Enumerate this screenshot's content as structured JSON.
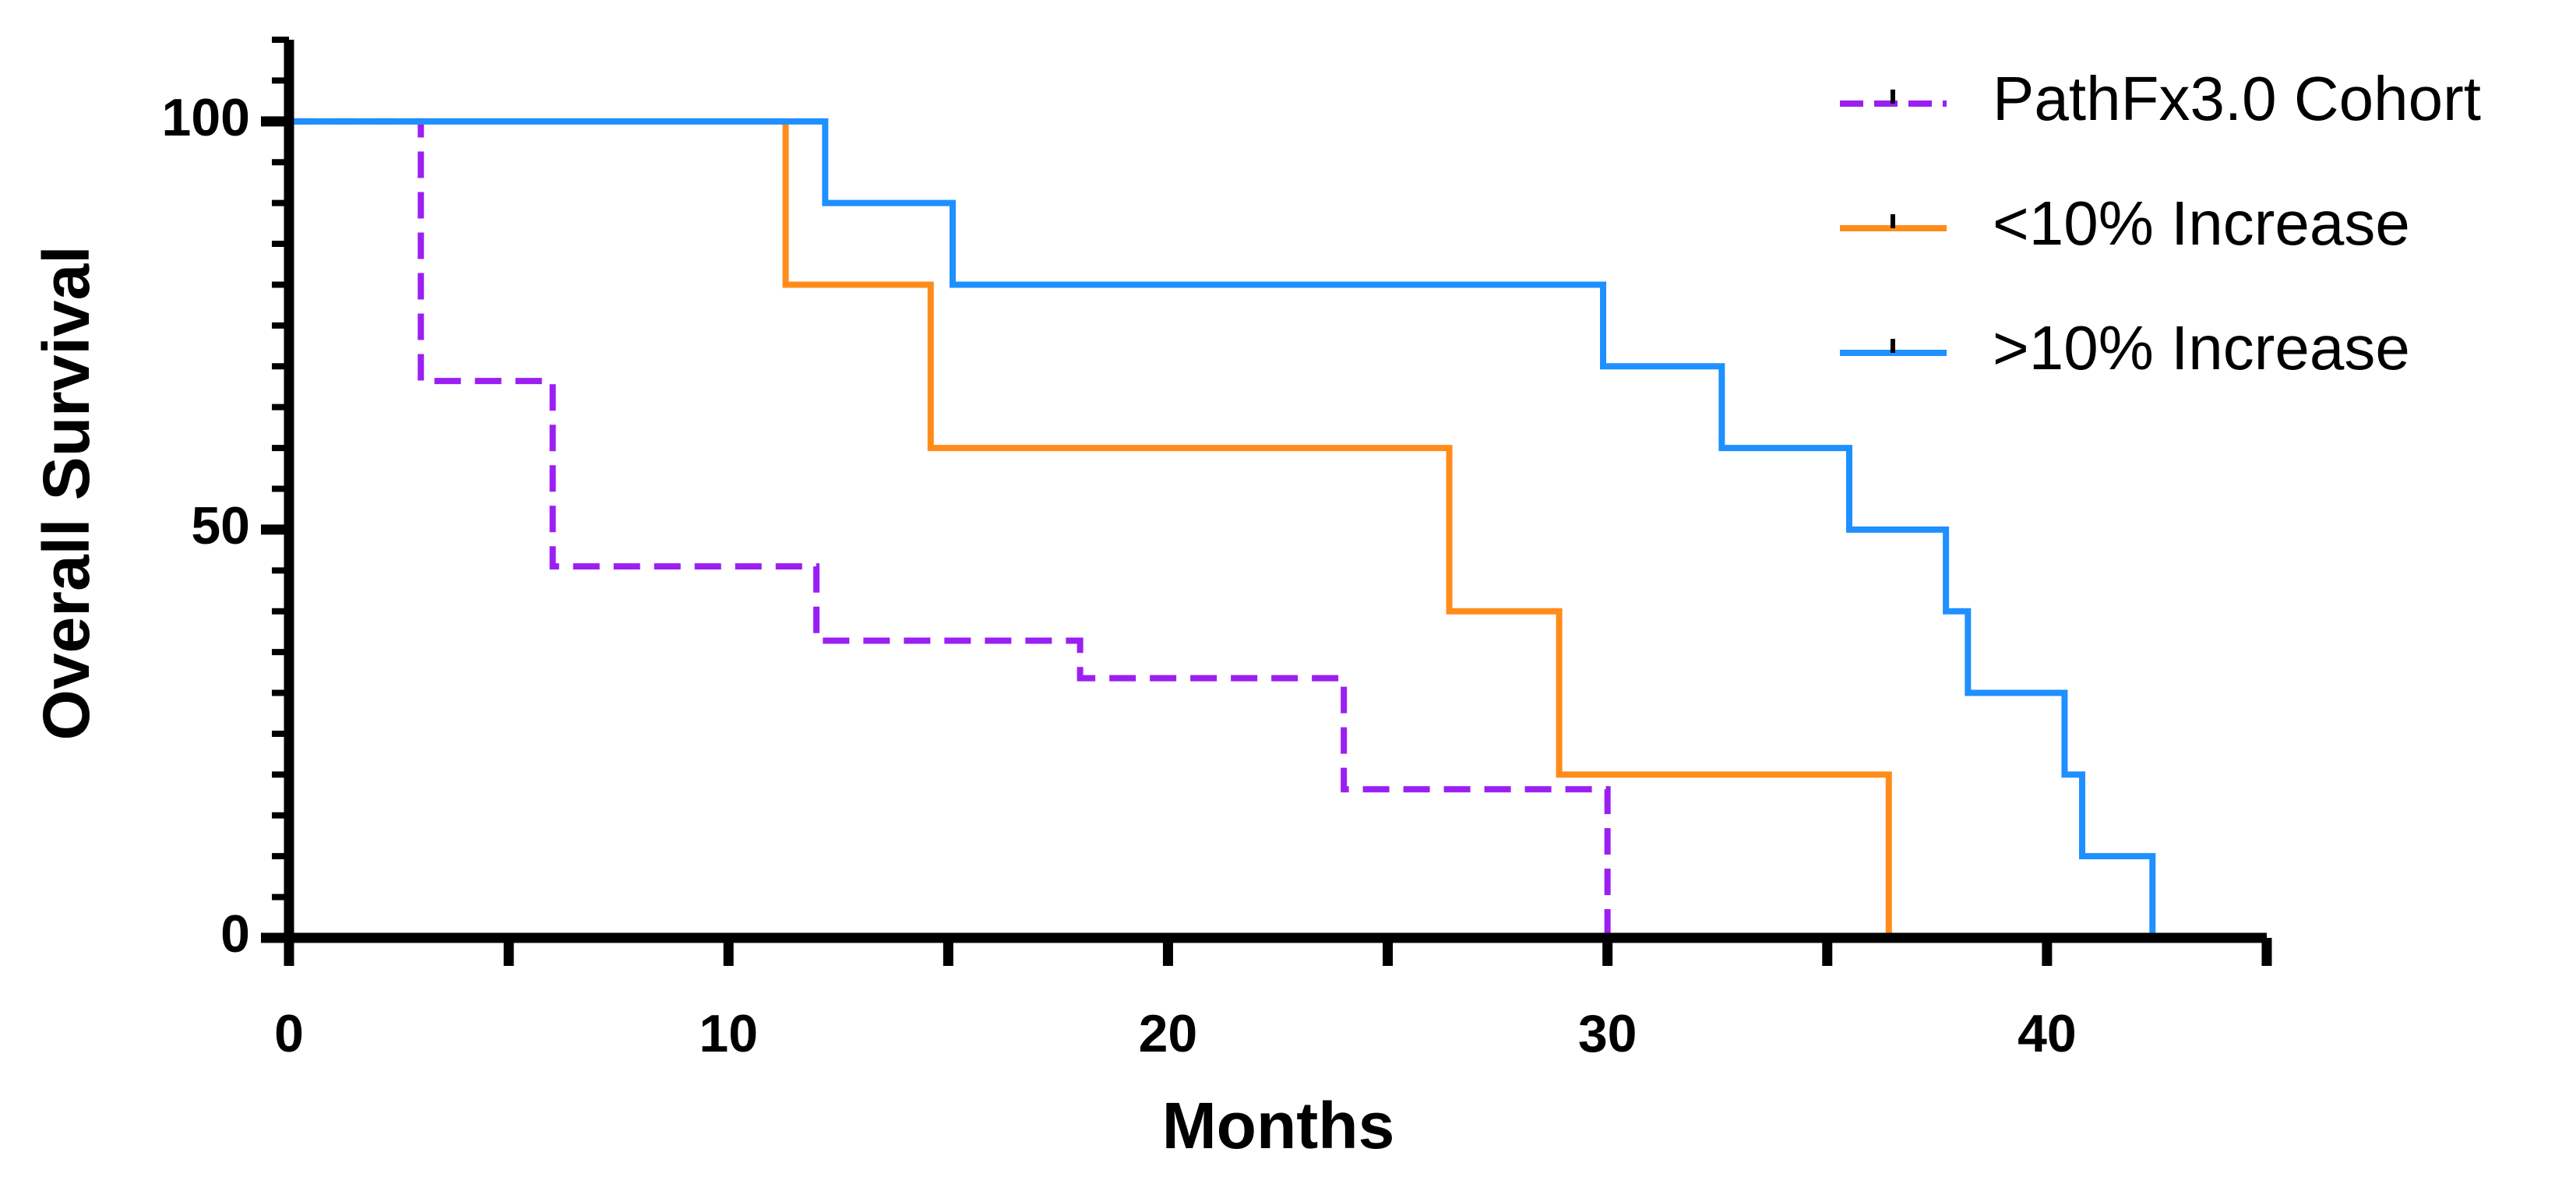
{
  "chart_data": {
    "type": "step",
    "xlabel": "Months",
    "ylabel": "Overall Survival",
    "xlim": [
      0,
      45
    ],
    "ylim": [
      0,
      110
    ],
    "xticks": [
      0,
      10,
      20,
      30,
      40
    ],
    "xminor_ticks": [
      5,
      15,
      25,
      35,
      45
    ],
    "yticks": [
      0,
      50,
      100
    ],
    "yminor_ticks": [
      5,
      10,
      15,
      20,
      25,
      30,
      35,
      40,
      45,
      55,
      60,
      65,
      70,
      75,
      80,
      85,
      90,
      95,
      105,
      110
    ],
    "legend": "upper right",
    "series": [
      {
        "name": "PathFx3.0 Cohort",
        "color": "#9b1ff2",
        "dashed": true,
        "x": [
          0,
          3,
          6,
          12,
          18,
          24,
          30
        ],
        "values": [
          100,
          68.2,
          45.5,
          36.4,
          31.8,
          18.2,
          0
        ]
      },
      {
        "name": "<10% Increase",
        "color": "#ff8c1a",
        "dashed": false,
        "x": [
          0,
          11.3,
          14.6,
          26.4,
          28.9,
          36.4
        ],
        "values": [
          100,
          80,
          60,
          40,
          20,
          0
        ]
      },
      {
        "name": ">10% Increase",
        "color": "#1e90ff",
        "dashed": false,
        "x": [
          0,
          12.2,
          15.1,
          29.9,
          32.6,
          35.5,
          37.7,
          38.2,
          40.4,
          40.8,
          42.4
        ],
        "values": [
          100,
          90,
          80,
          70,
          60,
          50,
          40,
          30,
          20,
          10,
          0
        ]
      }
    ]
  }
}
